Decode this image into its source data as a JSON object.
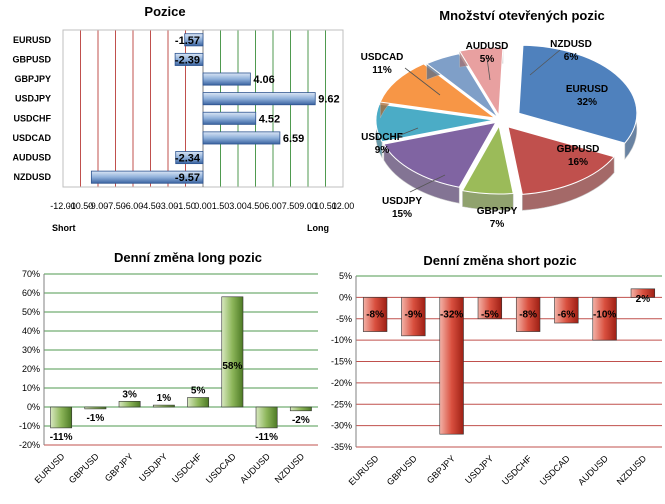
{
  "chart_data": [
    {
      "type": "bar",
      "orientation": "horizontal",
      "title": "Pozice",
      "categories": [
        "EURUSD",
        "GBPUSD",
        "GBPJPY",
        "USDJPY",
        "USDCHF",
        "USDCAD",
        "AUDUSD",
        "NZDUSD"
      ],
      "values": [
        -1.57,
        -2.39,
        4.06,
        9.62,
        4.52,
        6.59,
        -2.34,
        -9.57
      ],
      "value_labels": [
        "-1.57",
        "-2.39",
        "4.06",
        "9.62",
        "4.52",
        "6.59",
        "-2.34",
        "-9.57"
      ],
      "xlim": [
        -12,
        12
      ],
      "xticks": [
        "-12.00",
        "-10.50",
        "-9.00",
        "-7.50",
        "-6.00",
        "-4.50",
        "-3.00",
        "-1.50",
        "0.00",
        "1.50",
        "3.00",
        "4.50",
        "6.00",
        "7.50",
        "9.00",
        "10.50",
        "12.00"
      ],
      "left_label": "Short",
      "right_label": "Long",
      "colors": {
        "bar": "#4f79b5",
        "short_grid": "#c0504d",
        "long_grid": "#4f9a4f"
      }
    },
    {
      "type": "pie",
      "title": "Množství otevřených pozic",
      "slices": [
        {
          "name": "EURUSD",
          "value": 32,
          "label": "32%",
          "color": "#4f81bd"
        },
        {
          "name": "GBPUSD",
          "value": 16,
          "label": "16%",
          "color": "#c0504d"
        },
        {
          "name": "GBPJPY",
          "value": 7,
          "label": "7%",
          "color": "#9bbb59"
        },
        {
          "name": "USDJPY",
          "value": 15,
          "label": "15%",
          "color": "#8064a2"
        },
        {
          "name": "USDCHF",
          "value": 9,
          "label": "9%",
          "color": "#4bacc6"
        },
        {
          "name": "USDCAD",
          "value": 11,
          "label": "11%",
          "color": "#f79646"
        },
        {
          "name": "AUDUSD",
          "value": 5,
          "label": "5%",
          "color": "#7f9fc8"
        },
        {
          "name": "NZDUSD",
          "value": 6,
          "label": "6%",
          "color": "#e8a0a0"
        }
      ]
    },
    {
      "type": "bar",
      "title": "Denní změna long pozic",
      "categories": [
        "EURUSD",
        "GBPUSD",
        "GBPJPY",
        "USDJPY",
        "USDCHF",
        "USDCAD",
        "AUDUSD",
        "NZDUSD"
      ],
      "values": [
        -11,
        -1,
        3,
        1,
        5,
        58,
        -11,
        -2
      ],
      "value_labels": [
        "-11%",
        "-1%",
        "3%",
        "1%",
        "5%",
        "58%",
        "-11%",
        "-2%"
      ],
      "ylim": [
        -20,
        70
      ],
      "yticks": [
        "70%",
        "60%",
        "50%",
        "40%",
        "30%",
        "20%",
        "10%",
        "0%",
        "-10%",
        "-20%"
      ],
      "colors": {
        "bar": "#6e9b3b",
        "grid": "#4f9a4f",
        "bottom_grid": "#c0504d"
      }
    },
    {
      "type": "bar",
      "title": "Denní změna short pozic",
      "categories": [
        "EURUSD",
        "GBPUSD",
        "GBPJPY",
        "USDJPY",
        "USDCHF",
        "USDCAD",
        "AUDUSD",
        "NZDUSD"
      ],
      "values": [
        -8,
        -9,
        -32,
        -5,
        -8,
        -6,
        -10,
        2
      ],
      "value_labels": [
        "-8%",
        "-9%",
        "-32%",
        "-5%",
        "-8%",
        "-6%",
        "-10%",
        "2%"
      ],
      "ylim": [
        -35,
        5
      ],
      "yticks": [
        "5%",
        "0%",
        "-5%",
        "-10%",
        "-15%",
        "-20%",
        "-25%",
        "-30%",
        "-35%"
      ],
      "colors": {
        "bar": "#c0392b",
        "grid": "#c0504d",
        "top_grid": "#4f9a4f"
      }
    }
  ]
}
